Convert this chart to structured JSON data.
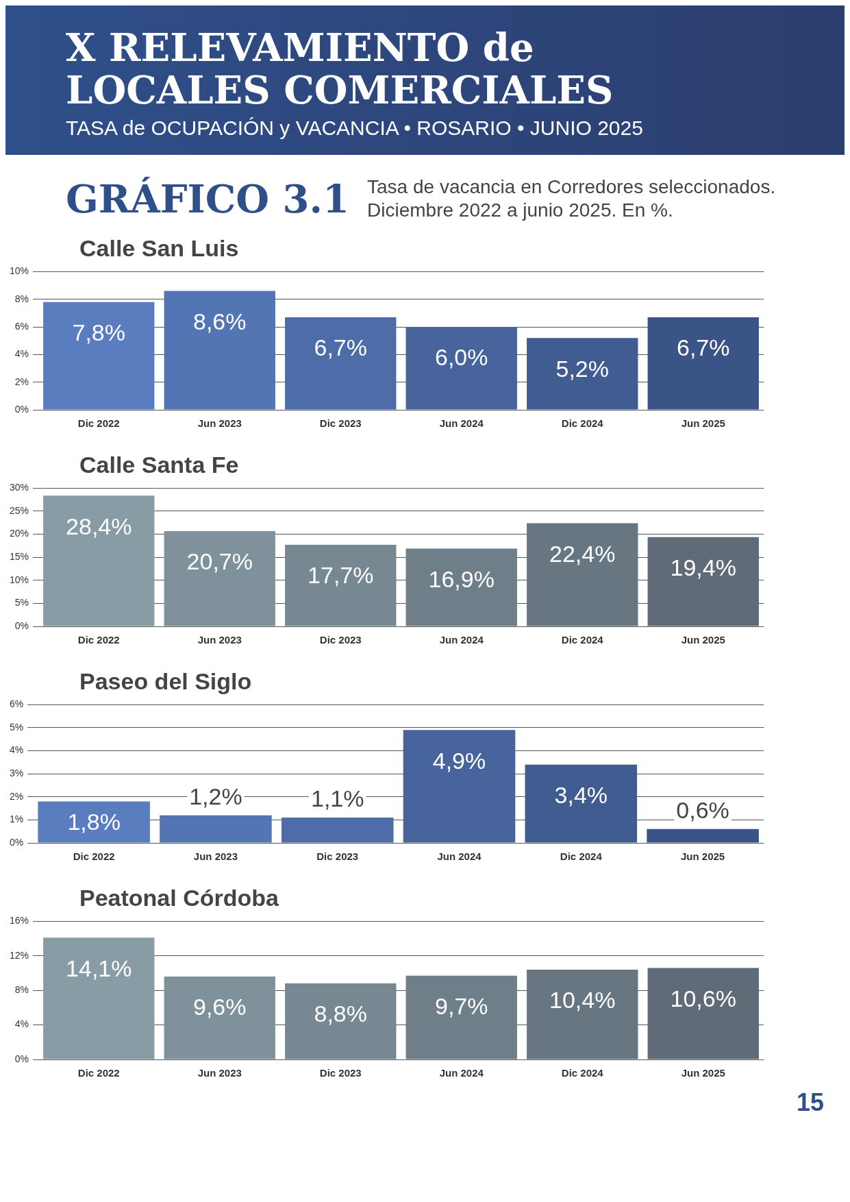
{
  "chart_data": [
    {
      "type": "bar",
      "title": "Calle San Luis",
      "annotations": [
        "X RELEVAMIENTO de LOCALES COMERCIALES",
        "TASA de OCUPACIÓN y VACANCIA • ROSARIO • JUNIO 2025",
        "GRÁFICO 3.1",
        "Tasa de vacancia en Corredores seleccionados. Diciembre 2022 a junio 2025. En %."
      ],
      "categories": [
        "Dic 2022",
        "Jun 2023",
        "Dic 2023",
        "Jun 2024",
        "Dic 2024",
        "Jun 2025"
      ],
      "values": [
        7.8,
        8.6,
        6.7,
        6.0,
        5.2,
        6.7
      ],
      "value_labels": [
        "7,8%",
        "8,6%",
        "6,7%",
        "6,0%",
        "5,2%",
        "6,7%"
      ],
      "colors": [
        "#5a7dbf",
        "#5475b4",
        "#4d6ca8",
        "#47649c",
        "#415c91",
        "#3b5487"
      ],
      "ylim": [
        0,
        10
      ],
      "yticks": [
        {
          "value": 0,
          "label": "0%"
        },
        {
          "value": 2,
          "label": "2%"
        },
        {
          "value": 4,
          "label": "4%"
        },
        {
          "value": 6,
          "label": "6%"
        },
        {
          "value": 8,
          "label": "8%"
        },
        {
          "value": 10,
          "label": "10%"
        }
      ],
      "grid": "y",
      "legend": false
    },
    {
      "type": "bar",
      "title": "Calle Santa Fe",
      "categories": [
        "Dic 2022",
        "Jun 2023",
        "Dic 2023",
        "Jun 2024",
        "Dic 2024",
        "Jun 2025"
      ],
      "values": [
        28.4,
        20.7,
        17.7,
        16.9,
        22.4,
        19.4
      ],
      "value_labels": [
        "28,4%",
        "20,7%",
        "17,7%",
        "16,9%",
        "22,4%",
        "19,4%"
      ],
      "colors": [
        "#889ca6",
        "#7f929c",
        "#778892",
        "#6f7f89",
        "#677680",
        "#5f6c77"
      ],
      "ylim": [
        0,
        30
      ],
      "yticks": [
        {
          "value": 0,
          "label": "0%"
        },
        {
          "value": 5,
          "label": "5%"
        },
        {
          "value": 10,
          "label": "10%"
        },
        {
          "value": 15,
          "label": "15%"
        },
        {
          "value": 20,
          "label": "20%"
        },
        {
          "value": 25,
          "label": "25%"
        },
        {
          "value": 30,
          "label": "30%"
        }
      ],
      "grid": "y",
      "legend": false
    },
    {
      "type": "bar",
      "title": "Paseo del Siglo",
      "categories": [
        "Dic 2022",
        "Jun 2023",
        "Dic 2023",
        "Jun 2024",
        "Dic 2024",
        "Jun 2025"
      ],
      "values": [
        1.8,
        1.2,
        1.1,
        4.9,
        3.4,
        0.6
      ],
      "value_labels": [
        "1,8%",
        "1,2%",
        "1,1%",
        "4,9%",
        "3,4%",
        "0,6%"
      ],
      "colors": [
        "#5a7dbf",
        "#5475b4",
        "#4d6ca8",
        "#47649c",
        "#415c91",
        "#3b5487"
      ],
      "ylim": [
        0,
        6
      ],
      "yticks": [
        {
          "value": 0,
          "label": "0%"
        },
        {
          "value": 1,
          "label": "1%"
        },
        {
          "value": 2,
          "label": "2%"
        },
        {
          "value": 3,
          "label": "3%"
        },
        {
          "value": 4,
          "label": "4%"
        },
        {
          "value": 5,
          "label": "5%"
        },
        {
          "value": 6,
          "label": "6%"
        }
      ],
      "grid": "y",
      "legend": false
    },
    {
      "type": "bar",
      "title": "Peatonal Córdoba",
      "annotations": [
        "15"
      ],
      "categories": [
        "Dic 2022",
        "Jun 2023",
        "Dic 2023",
        "Jun 2024",
        "Dic 2024",
        "Jun 2025"
      ],
      "values": [
        14.1,
        9.6,
        8.8,
        9.7,
        10.4,
        10.6
      ],
      "value_labels": [
        "14,1%",
        "9,6%",
        "8,8%",
        "9,7%",
        "10,4%",
        "10,6%"
      ],
      "colors": [
        "#889ca6",
        "#7f929c",
        "#778892",
        "#6f7f89",
        "#677680",
        "#5f6c77"
      ],
      "ylim": [
        0,
        16
      ],
      "yticks": [
        {
          "value": 0,
          "label": "0%"
        },
        {
          "value": 4,
          "label": "4%"
        },
        {
          "value": 8,
          "label": "8%"
        },
        {
          "value": 12,
          "label": "12%"
        },
        {
          "value": 16,
          "label": "16%"
        }
      ],
      "grid": "y",
      "legend": false
    }
  ]
}
